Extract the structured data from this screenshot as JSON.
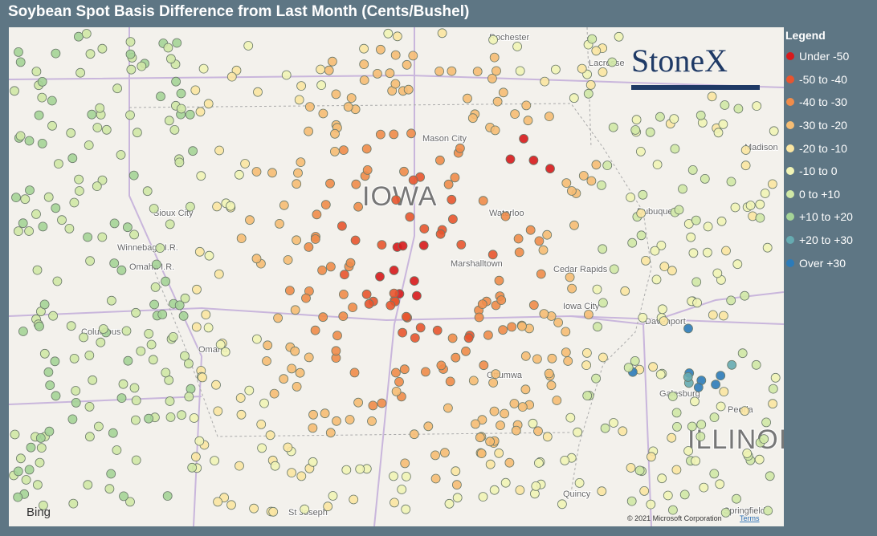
{
  "header": {
    "title": "Soybean Spot Basis Difference from Last Month (Cents/Bushel)"
  },
  "legend": {
    "title": "Legend",
    "items": [
      {
        "label": "Under -50",
        "color": "#d7191c"
      },
      {
        "label": "-50 to -40",
        "color": "#e8552f"
      },
      {
        "label": "-40 to -30",
        "color": "#f08c4a"
      },
      {
        "label": "-30 to -20",
        "color": "#f6bd74"
      },
      {
        "label": "-20 to -10",
        "color": "#fbe6a2"
      },
      {
        "label": "-10 to 0",
        "color": "#f1f4b6"
      },
      {
        "label": "0 to +10",
        "color": "#d0e8a6"
      },
      {
        "label": "+10 to +20",
        "color": "#a5d497"
      },
      {
        "label": "+20 to +30",
        "color": "#66abb1"
      },
      {
        "label": "Over +30",
        "color": "#2c7bb9"
      }
    ]
  },
  "map": {
    "labels": [
      "Rochester",
      "Lacrosse",
      "Mason City",
      "IOWA",
      "Waterloo",
      "Dubuque",
      "Madison",
      "Sioux City",
      "Winnebago I.R.",
      "Omaha I.R.",
      "Marshalltown",
      "Cedar Rapids",
      "Iowa City",
      "Davenport",
      "Columbus",
      "Omaha",
      "Ottumwa",
      "Galesburg",
      "Peoria",
      "ILLINOIS",
      "Quincy",
      "St Joseph",
      "Springfield"
    ],
    "logo": "StoneX",
    "provider": "Bing",
    "copyright": "© 2021 Microsoft Corporation",
    "terms": "Terms"
  }
}
